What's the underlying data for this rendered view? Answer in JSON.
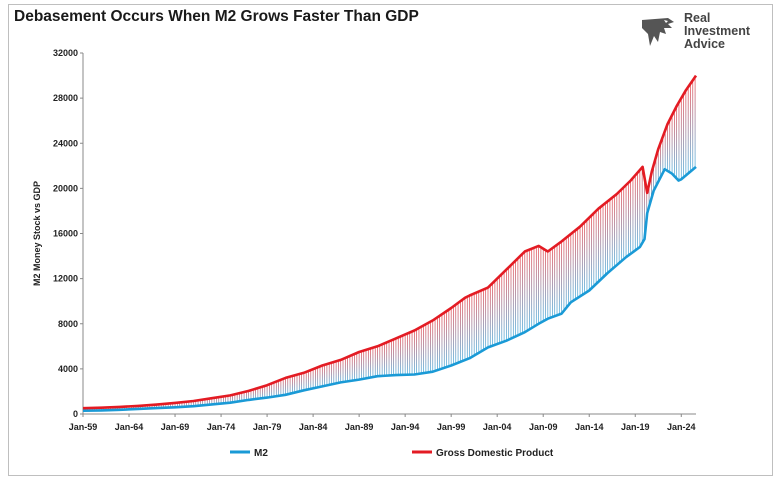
{
  "title": "Debasement Occurs When M2 Grows Faster Than GDP",
  "logo": {
    "lines": [
      "Real",
      "Investment",
      "Advice"
    ],
    "icon": "eagle-head-icon"
  },
  "chart_data": {
    "type": "line",
    "ylabel": "M2 Money Stock vs GDP",
    "ylim": [
      0,
      32000
    ],
    "y_ticks": [
      0,
      4000,
      8000,
      12000,
      16000,
      20000,
      24000,
      28000,
      32000
    ],
    "x_range": [
      1959,
      2025.6
    ],
    "x_ticks": [
      {
        "label": "Jan-59",
        "year": 1959
      },
      {
        "label": "Jan-64",
        "year": 1964
      },
      {
        "label": "Jan-69",
        "year": 1969
      },
      {
        "label": "Jan-74",
        "year": 1974
      },
      {
        "label": "Jan-79",
        "year": 1979
      },
      {
        "label": "Jan-84",
        "year": 1984
      },
      {
        "label": "Jan-89",
        "year": 1989
      },
      {
        "label": "Jan-94",
        "year": 1994
      },
      {
        "label": "Jan-99",
        "year": 1999
      },
      {
        "label": "Jan-04",
        "year": 2004
      },
      {
        "label": "Jan-09",
        "year": 2009
      },
      {
        "label": "Jan-14",
        "year": 2014
      },
      {
        "label": "Jan-19",
        "year": 2019
      },
      {
        "label": "Jan-24",
        "year": 2024
      }
    ],
    "legend_placement": "bottom",
    "grid": false,
    "series": [
      {
        "name": "M2",
        "color": "#1a9ad6",
        "points": [
          [
            1959,
            290
          ],
          [
            1961,
            320
          ],
          [
            1963,
            370
          ],
          [
            1965,
            450
          ],
          [
            1967,
            520
          ],
          [
            1969,
            590
          ],
          [
            1971,
            690
          ],
          [
            1973,
            850
          ],
          [
            1975,
            1000
          ],
          [
            1977,
            1250
          ],
          [
            1979,
            1450
          ],
          [
            1981,
            1700
          ],
          [
            1983,
            2100
          ],
          [
            1985,
            2450
          ],
          [
            1987,
            2800
          ],
          [
            1989,
            3050
          ],
          [
            1991,
            3350
          ],
          [
            1993,
            3450
          ],
          [
            1995,
            3500
          ],
          [
            1997,
            3750
          ],
          [
            1999,
            4300
          ],
          [
            2001,
            4950
          ],
          [
            2003,
            5900
          ],
          [
            2005,
            6500
          ],
          [
            2007,
            7250
          ],
          [
            2008.5,
            8000
          ],
          [
            2009.5,
            8450
          ],
          [
            2011,
            8900
          ],
          [
            2012,
            9900
          ],
          [
            2014,
            10950
          ],
          [
            2016,
            12500
          ],
          [
            2018,
            13900
          ],
          [
            2019.5,
            14800
          ],
          [
            2020,
            15500
          ],
          [
            2020.3,
            17800
          ],
          [
            2021,
            19800
          ],
          [
            2022.2,
            21700
          ],
          [
            2023,
            21300
          ],
          [
            2023.7,
            20700
          ],
          [
            2024,
            20800
          ],
          [
            2025,
            21500
          ],
          [
            2025.6,
            21900
          ]
        ]
      },
      {
        "name": "Gross Domestic Product",
        "color": "#e31b23",
        "points": [
          [
            1959,
            510
          ],
          [
            1961,
            560
          ],
          [
            1963,
            630
          ],
          [
            1965,
            720
          ],
          [
            1967,
            830
          ],
          [
            1969,
            980
          ],
          [
            1971,
            1150
          ],
          [
            1973,
            1400
          ],
          [
            1975,
            1650
          ],
          [
            1977,
            2050
          ],
          [
            1979,
            2550
          ],
          [
            1981,
            3200
          ],
          [
            1983,
            3650
          ],
          [
            1985,
            4300
          ],
          [
            1987,
            4800
          ],
          [
            1989,
            5500
          ],
          [
            1991,
            6000
          ],
          [
            1993,
            6700
          ],
          [
            1995,
            7400
          ],
          [
            1997,
            8300
          ],
          [
            1999,
            9400
          ],
          [
            2000.5,
            10300
          ],
          [
            2001,
            10500
          ],
          [
            2003,
            11200
          ],
          [
            2005,
            12800
          ],
          [
            2007,
            14400
          ],
          [
            2008.5,
            14900
          ],
          [
            2009.5,
            14400
          ],
          [
            2011,
            15300
          ],
          [
            2013,
            16600
          ],
          [
            2015,
            18200
          ],
          [
            2017,
            19500
          ],
          [
            2018.5,
            20700
          ],
          [
            2019.8,
            21900
          ],
          [
            2020.3,
            19600
          ],
          [
            2020.8,
            21500
          ],
          [
            2021.5,
            23500
          ],
          [
            2022.5,
            25700
          ],
          [
            2023.5,
            27300
          ],
          [
            2024.5,
            28700
          ],
          [
            2025.6,
            30000
          ]
        ]
      }
    ]
  }
}
